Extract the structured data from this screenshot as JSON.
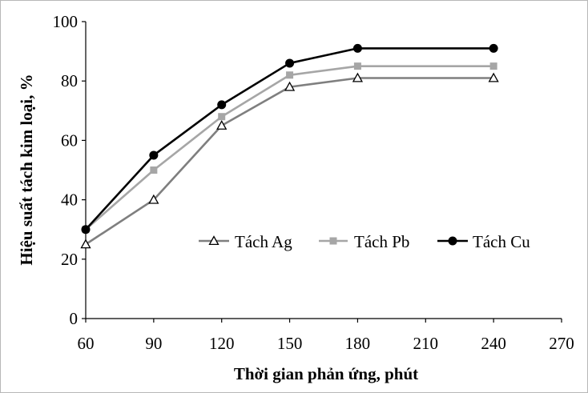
{
  "chart_data": {
    "type": "line",
    "title": "",
    "xlabel": "Thời gian phản ứng, phút",
    "ylabel": "Hiệu  suất tách kim loại, %",
    "xlim": [
      60,
      270
    ],
    "ylim": [
      0,
      100
    ],
    "x_ticks": [
      "60",
      "90",
      "120",
      "150",
      "180",
      "210",
      "240",
      "270"
    ],
    "y_ticks": [
      "0",
      "20",
      "40",
      "60",
      "80",
      "100"
    ],
    "x_tick_values": [
      60,
      90,
      120,
      150,
      180,
      210,
      240,
      270
    ],
    "y_tick_values": [
      0,
      20,
      40,
      60,
      80,
      100
    ],
    "grid": false,
    "legend_position": "center-right",
    "x": [
      60,
      90,
      120,
      150,
      180,
      240
    ],
    "series": [
      {
        "name": "Tách Ag",
        "values": [
          25,
          40,
          65,
          78,
          81,
          81
        ],
        "color": "#7f7f7f",
        "marker": "open-triangle"
      },
      {
        "name": "Tách Pb",
        "values": [
          30,
          50,
          68,
          82,
          85,
          85
        ],
        "color": "#a6a6a6",
        "marker": "square"
      },
      {
        "name": "Tách Cu",
        "values": [
          30,
          55,
          72,
          86,
          91,
          91
        ],
        "color": "#000000",
        "marker": "circle"
      }
    ]
  }
}
